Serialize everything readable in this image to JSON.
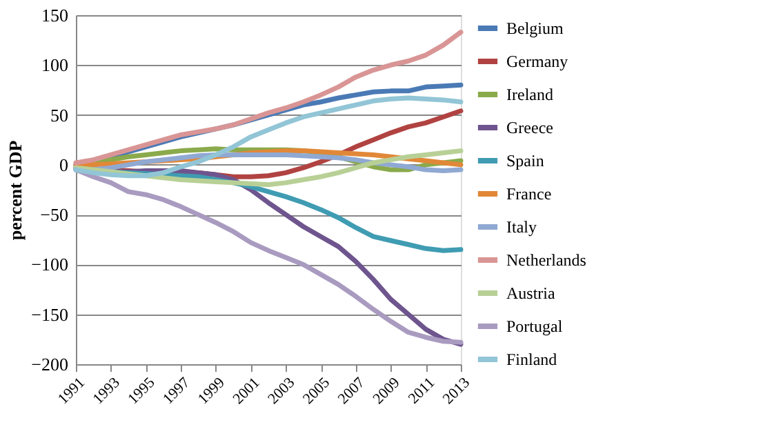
{
  "chart_data": {
    "type": "line",
    "ylabel": "percent GDP",
    "x": [
      1991,
      1992,
      1993,
      1994,
      1995,
      1996,
      1997,
      1998,
      1999,
      2000,
      2001,
      2002,
      2003,
      2004,
      2005,
      2006,
      2007,
      2008,
      2009,
      2010,
      2011,
      2012,
      2013
    ],
    "xlim": [
      1991,
      2013
    ],
    "xticks": [
      1991,
      1993,
      1995,
      1997,
      1999,
      2001,
      2003,
      2005,
      2007,
      2009,
      2011,
      2013
    ],
    "ylim": [
      -200,
      150
    ],
    "yticks": [
      -200,
      -150,
      -100,
      -50,
      0,
      50,
      100,
      150
    ],
    "grid": "y",
    "legend": "right",
    "line_style": "solid",
    "marker": "none",
    "series": [
      {
        "name": "Belgium",
        "color": "#4a7ab5",
        "values": [
          0,
          3,
          8,
          13,
          18,
          23,
          28,
          32,
          36,
          40,
          45,
          50,
          55,
          60,
          63,
          67,
          70,
          73,
          74,
          74,
          78,
          79,
          80
        ]
      },
      {
        "name": "Germany",
        "color": "#b04341",
        "values": [
          -3,
          -5,
          -5,
          -6,
          -7,
          -7,
          -7,
          -8,
          -10,
          -12,
          -12,
          -11,
          -8,
          -3,
          3,
          10,
          18,
          25,
          32,
          38,
          42,
          48,
          54
        ]
      },
      {
        "name": "Ireland",
        "color": "#8aaa4b",
        "values": [
          0,
          2,
          5,
          8,
          10,
          12,
          14,
          15,
          16,
          15,
          15,
          15,
          15,
          14,
          12,
          8,
          3,
          -2,
          -5,
          -5,
          0,
          2,
          4
        ]
      },
      {
        "name": "Greece",
        "color": "#6e558e",
        "values": [
          -3,
          -5,
          -7,
          -7,
          -6,
          -6,
          -6,
          -8,
          -10,
          -15,
          -25,
          -38,
          -50,
          -62,
          -72,
          -82,
          -97,
          -115,
          -135,
          -150,
          -165,
          -175,
          -180
        ]
      },
      {
        "name": "Spain",
        "color": "#3f9cb2",
        "values": [
          -3,
          -5,
          -7,
          -8,
          -9,
          -10,
          -11,
          -12,
          -15,
          -18,
          -22,
          -27,
          -32,
          -38,
          -45,
          -53,
          -63,
          -72,
          -76,
          -80,
          -84,
          -86,
          -85
        ]
      },
      {
        "name": "France",
        "color": "#e18838",
        "values": [
          0,
          0,
          1,
          2,
          3,
          4,
          5,
          6,
          8,
          10,
          12,
          13,
          14,
          14,
          13,
          12,
          11,
          10,
          8,
          6,
          4,
          2,
          0
        ]
      },
      {
        "name": "Italy",
        "color": "#90a9d3",
        "values": [
          -5,
          -5,
          -3,
          0,
          3,
          5,
          7,
          9,
          10,
          10,
          10,
          10,
          10,
          9,
          8,
          7,
          5,
          2,
          0,
          -2,
          -5,
          -6,
          -5
        ]
      },
      {
        "name": "Netherlands",
        "color": "#d99595",
        "values": [
          2,
          5,
          10,
          15,
          20,
          25,
          30,
          33,
          36,
          40,
          46,
          52,
          57,
          63,
          70,
          78,
          88,
          95,
          100,
          104,
          110,
          120,
          133
        ]
      },
      {
        "name": "Austria",
        "color": "#b8d096",
        "values": [
          -3,
          -5,
          -7,
          -9,
          -11,
          -13,
          -15,
          -16,
          -17,
          -18,
          -19,
          -20,
          -18,
          -15,
          -12,
          -8,
          -3,
          2,
          5,
          8,
          10,
          12,
          14
        ]
      },
      {
        "name": "Portugal",
        "color": "#a99bc0",
        "values": [
          -5,
          -12,
          -18,
          -27,
          -30,
          -35,
          -42,
          -50,
          -58,
          -67,
          -78,
          -86,
          -93,
          -100,
          -110,
          -120,
          -132,
          -145,
          -157,
          -168,
          -173,
          -177,
          -178
        ]
      },
      {
        "name": "Finland",
        "color": "#92c5d6",
        "values": [
          -5,
          -8,
          -10,
          -11,
          -11,
          -8,
          -2,
          3,
          10,
          18,
          28,
          35,
          42,
          48,
          52,
          56,
          60,
          64,
          66,
          67,
          66,
          65,
          63
        ]
      }
    ]
  }
}
